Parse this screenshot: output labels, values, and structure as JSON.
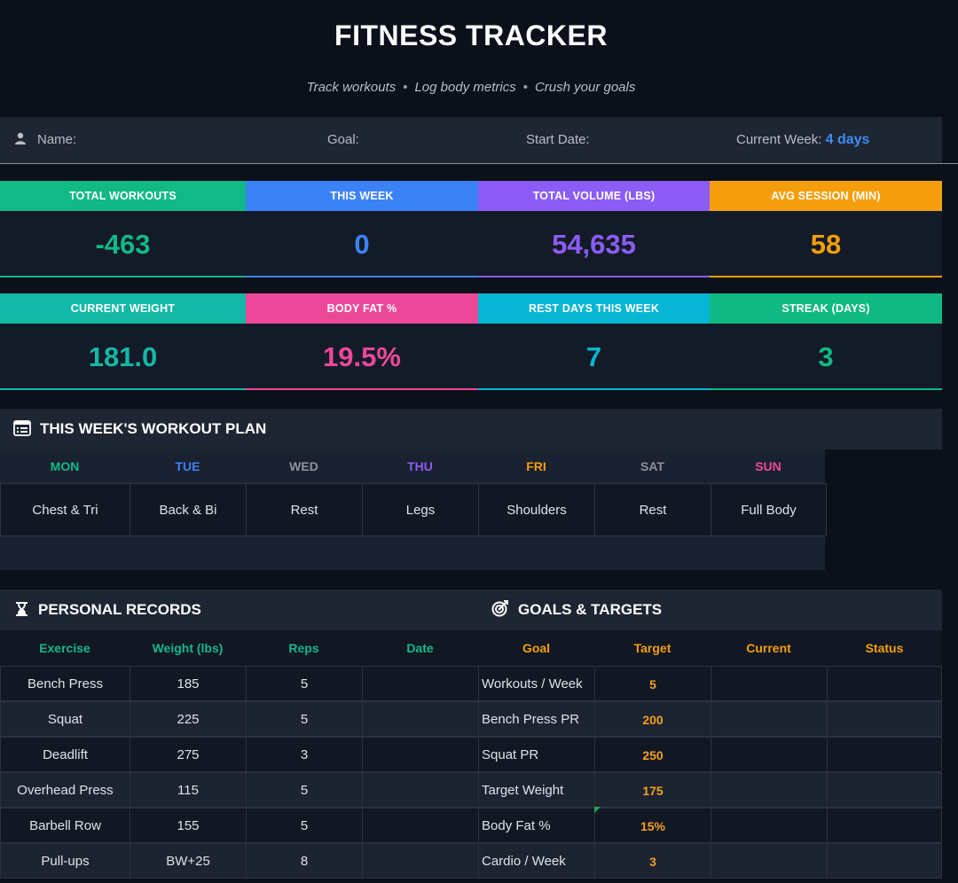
{
  "header": {
    "title": "FITNESS TRACKER",
    "subtitle_items": [
      "Track workouts",
      "Log body metrics",
      "Crush your goals"
    ],
    "separator": "•"
  },
  "info": {
    "name_label": "Name:",
    "goal_label": "Goal:",
    "start_label": "Start Date:",
    "week_label": "Current Week:",
    "week_value": "4 days"
  },
  "stats_row1": [
    {
      "label": "TOTAL WORKOUTS",
      "value": "-463",
      "color": "#12b886"
    },
    {
      "label": "THIS WEEK",
      "value": "0",
      "color": "#3b82f6"
    },
    {
      "label": "TOTAL VOLUME (LBS)",
      "value": "54,635",
      "color": "#8b5cf6"
    },
    {
      "label": "AVG SESSION (MIN)",
      "value": "58",
      "color": "#f59e0b"
    }
  ],
  "stats_row2": [
    {
      "label": "CURRENT WEIGHT",
      "value": "181.0",
      "color": "#14b8a6"
    },
    {
      "label": "BODY FAT %",
      "value": "19.5%",
      "color": "#ec4899"
    },
    {
      "label": "REST DAYS THIS WEEK",
      "value": "7",
      "color": "#06b6d4"
    },
    {
      "label": "STREAK (DAYS)",
      "value": "3",
      "color": "#10b981"
    }
  ],
  "plan": {
    "title": "THIS WEEK'S WORKOUT PLAN",
    "days": [
      {
        "day": "MON",
        "workout": "Chest & Tri",
        "color": "#12b886"
      },
      {
        "day": "TUE",
        "workout": "Back & Bi",
        "color": "#3b82f6"
      },
      {
        "day": "WED",
        "workout": "Rest",
        "color": "#8e949e"
      },
      {
        "day": "THU",
        "workout": "Legs",
        "color": "#8b5cf6"
      },
      {
        "day": "FRI",
        "workout": "Shoulders",
        "color": "#f59e0b"
      },
      {
        "day": "SAT",
        "workout": "Rest",
        "color": "#8e949e"
      },
      {
        "day": "SUN",
        "workout": "Full Body",
        "color": "#ec4899"
      }
    ]
  },
  "records": {
    "title": "PERSONAL RECORDS",
    "columns": [
      "Exercise",
      "Weight (lbs)",
      "Reps",
      "Date"
    ],
    "header_color": "#12b886",
    "rows": [
      [
        "Bench Press",
        "185",
        "5",
        ""
      ],
      [
        "Squat",
        "225",
        "5",
        ""
      ],
      [
        "Deadlift",
        "275",
        "3",
        ""
      ],
      [
        "Overhead Press",
        "115",
        "5",
        ""
      ],
      [
        "Barbell Row",
        "155",
        "5",
        ""
      ],
      [
        "Pull-ups",
        "BW+25",
        "8",
        ""
      ]
    ]
  },
  "goals": {
    "title": "GOALS & TARGETS",
    "columns": [
      "Goal",
      "Target",
      "Current",
      "Status"
    ],
    "header_color": "#f59e0b",
    "rows": [
      [
        "Workouts / Week",
        "5",
        "",
        ""
      ],
      [
        "Bench Press PR",
        "200",
        "",
        ""
      ],
      [
        "Squat PR",
        "250",
        "",
        ""
      ],
      [
        "Target Weight",
        "175",
        "",
        ""
      ],
      [
        "Body Fat %",
        "15%",
        "",
        ""
      ],
      [
        "Cardio / Week",
        "3",
        "",
        ""
      ]
    ]
  }
}
